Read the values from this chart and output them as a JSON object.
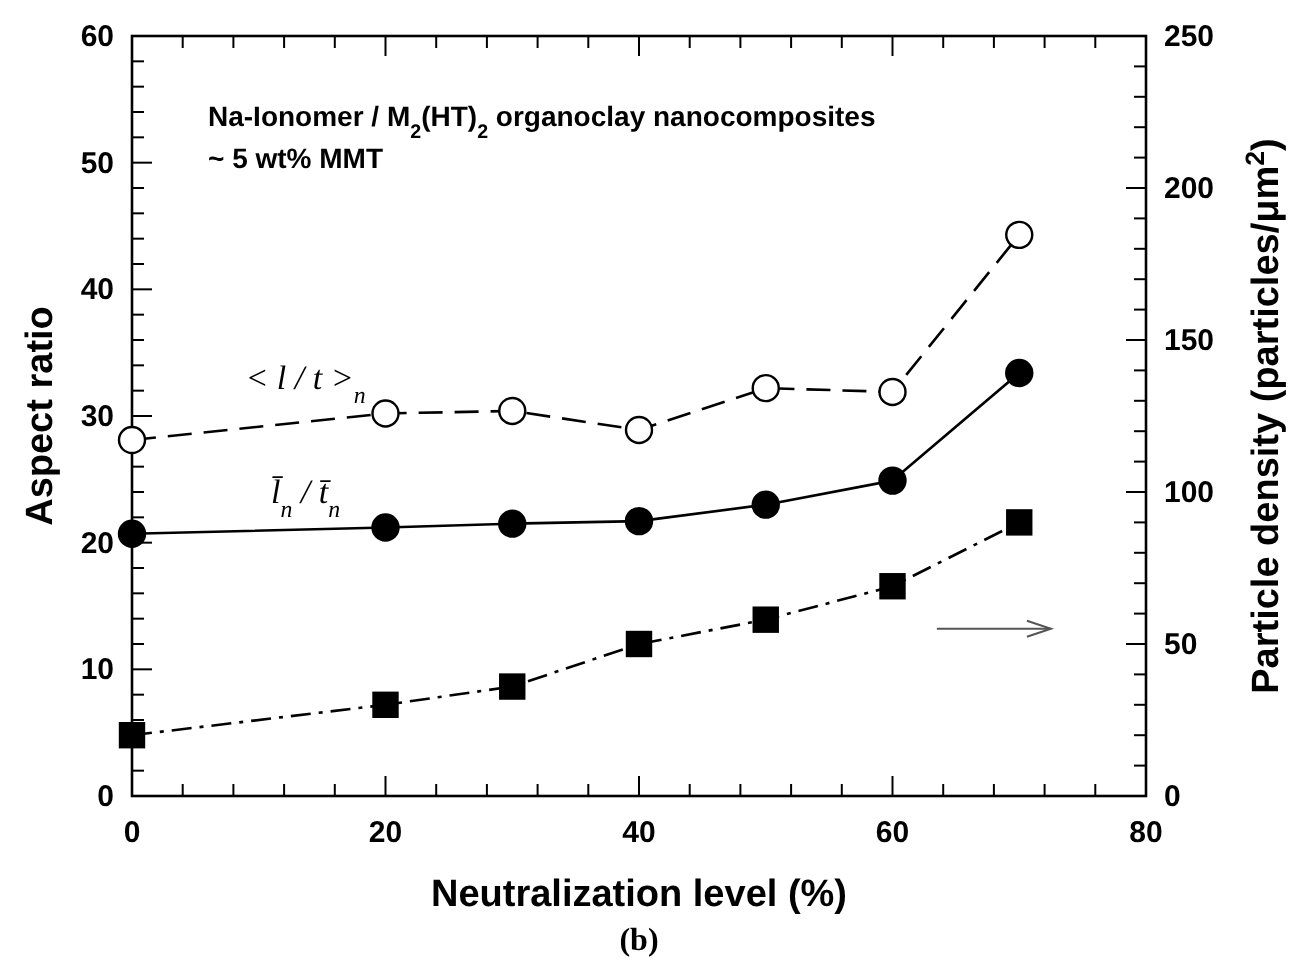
{
  "chart_data": {
    "type": "line",
    "xlabel": "Neutralization level (%)",
    "ylabel": "Aspect ratio",
    "y2label": "Particle density (particles/μm$^{2}$)",
    "x": [
      0,
      20,
      30,
      40,
      50,
      60,
      70
    ],
    "xlim": [
      0,
      80
    ],
    "xticks": [
      0,
      {
        "value": 4,
        "label": null
      },
      {
        "value": 8,
        "label": null
      },
      {
        "value": 12,
        "label": null
      },
      {
        "value": 16,
        "label": null
      },
      20,
      {
        "value": 24,
        "label": null
      },
      {
        "value": 28,
        "label": null
      },
      {
        "value": 32,
        "label": null
      },
      {
        "value": 36,
        "label": null
      },
      40,
      {
        "value": 44,
        "label": null
      },
      {
        "value": 48,
        "label": null
      },
      {
        "value": 52,
        "label": null
      },
      {
        "value": 56,
        "label": null
      },
      60,
      {
        "value": 64,
        "label": null
      },
      {
        "value": 68,
        "label": null
      },
      {
        "value": 72,
        "label": null
      },
      {
        "value": 76,
        "label": null
      },
      80
    ],
    "ylim": [
      0,
      60
    ],
    "yticks": [
      0,
      {
        "value": 2,
        "label": null
      },
      {
        "value": 4,
        "label": null
      },
      {
        "value": 6,
        "label": null
      },
      {
        "value": 8,
        "label": null
      },
      10,
      {
        "value": 12,
        "label": null
      },
      {
        "value": 14,
        "label": null
      },
      {
        "value": 16,
        "label": null
      },
      {
        "value": 18,
        "label": null
      },
      20,
      {
        "value": 22,
        "label": null
      },
      {
        "value": 24,
        "label": null
      },
      {
        "value": 26,
        "label": null
      },
      {
        "value": 28,
        "label": null
      },
      30,
      {
        "value": 32,
        "label": null
      },
      {
        "value": 34,
        "label": null
      },
      {
        "value": 36,
        "label": null
      },
      {
        "value": 38,
        "label": null
      },
      40,
      {
        "value": 42,
        "label": null
      },
      {
        "value": 44,
        "label": null
      },
      {
        "value": 46,
        "label": null
      },
      {
        "value": 48,
        "label": null
      },
      50,
      {
        "value": 52,
        "label": null
      },
      {
        "value": 54,
        "label": null
      },
      {
        "value": 56,
        "label": null
      },
      {
        "value": 58,
        "label": null
      },
      60
    ],
    "y2lim": [
      0,
      250
    ],
    "y2ticks": [
      0,
      {
        "value": 10,
        "label": null
      },
      {
        "value": 20,
        "label": null
      },
      {
        "value": 30,
        "label": null
      },
      {
        "value": 40,
        "label": null
      },
      50,
      {
        "value": 60,
        "label": null
      },
      {
        "value": 70,
        "label": null
      },
      {
        "value": 80,
        "label": null
      },
      {
        "value": 90,
        "label": null
      },
      100,
      {
        "value": 110,
        "label": null
      },
      {
        "value": 120,
        "label": null
      },
      {
        "value": 130,
        "label": null
      },
      {
        "value": 140,
        "label": null
      },
      150,
      {
        "value": 160,
        "label": null
      },
      {
        "value": 170,
        "label": null
      },
      {
        "value": 180,
        "label": null
      },
      {
        "value": 190,
        "label": null
      },
      200,
      {
        "value": 210,
        "label": null
      },
      {
        "value": 220,
        "label": null
      },
      {
        "value": 230,
        "label": null
      },
      {
        "value": 240,
        "label": null
      },
      250
    ],
    "series": [
      {
        "name": "< l / t >$_{n}$",
        "color": "#000000",
        "marker": "circle",
        "line_style": "dashed",
        "values": [
          28.1,
          30.2,
          30.4,
          28.9,
          32.2,
          31.9,
          44.3
        ]
      },
      {
        "name": "l̄$_{n}$ / t̄$_{n}$",
        "color": "#000000",
        "marker": "circle",
        "line_style": "solid",
        "values": [
          20.7,
          21.2,
          21.5,
          21.7,
          23.0,
          24.9,
          33.4
        ]
      },
      {
        "color": "#000000",
        "marker": "square",
        "line_style": "dashdot",
        "axis": "y2",
        "values": [
          20,
          30,
          36,
          50,
          58,
          69,
          90
        ]
      }
    ],
    "annotations": [
      "Na-Ionomer / M$_{2}$(HT)$_{2}$ organoclay nanocomposites",
      "~ 5 wt% MMT",
      "(b)"
    ]
  }
}
